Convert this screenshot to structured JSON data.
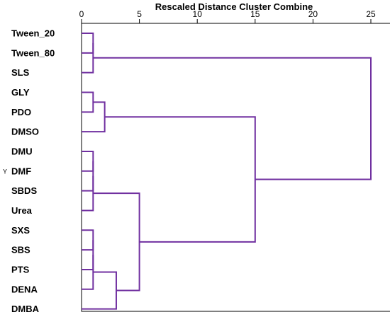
{
  "chart_data": {
    "type": "dendrogram",
    "title": "Rescaled Distance Cluster Combine",
    "x_ticks": [
      0,
      5,
      10,
      15,
      20,
      25
    ],
    "xlim": [
      0,
      25
    ],
    "marker": "Y",
    "marker_leaf": "DMF",
    "leaves": [
      "Tween_20",
      "Tween_80",
      "SLS",
      "GLY",
      "PDO",
      "DMSO",
      "DMU",
      "DMF",
      "SBDS",
      "Urea",
      "SXS",
      "SBS",
      "PTS",
      "DENA",
      "DMBA"
    ],
    "merges": [
      {
        "id": "c1",
        "children": [
          "Tween_20",
          "Tween_80"
        ],
        "height": 1
      },
      {
        "id": "c2",
        "children": [
          "c1",
          "SLS"
        ],
        "height": 1
      },
      {
        "id": "c3",
        "children": [
          "GLY",
          "PDO"
        ],
        "height": 1
      },
      {
        "id": "c4",
        "children": [
          "c3",
          "DMSO"
        ],
        "height": 2
      },
      {
        "id": "c5",
        "children": [
          "DMU",
          "DMF"
        ],
        "height": 1
      },
      {
        "id": "c6",
        "children": [
          "c5",
          "SBDS"
        ],
        "height": 1
      },
      {
        "id": "c7",
        "children": [
          "c6",
          "Urea"
        ],
        "height": 1
      },
      {
        "id": "c8",
        "children": [
          "SXS",
          "SBS"
        ],
        "height": 1
      },
      {
        "id": "c9",
        "children": [
          "c8",
          "PTS"
        ],
        "height": 1
      },
      {
        "id": "c10",
        "children": [
          "c9",
          "DENA"
        ],
        "height": 1
      },
      {
        "id": "c11",
        "children": [
          "c10",
          "DMBA"
        ],
        "height": 3
      },
      {
        "id": "c12",
        "children": [
          "c7",
          "c11"
        ],
        "height": 5
      },
      {
        "id": "c13",
        "children": [
          "c4",
          "c12"
        ],
        "height": 15
      },
      {
        "id": "c14",
        "children": [
          "c2",
          "c13"
        ],
        "height": 25
      }
    ],
    "colors": {
      "branch": "#7030a0",
      "axis": "#000000"
    }
  }
}
